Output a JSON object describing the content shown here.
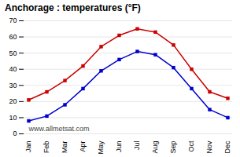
{
  "chart_data": {
    "type": "line",
    "title": "Anchorage : temperatures (°F)",
    "categories": [
      "Jan",
      "Feb",
      "Mar",
      "Apr",
      "May",
      "Jun",
      "Jul",
      "Aug",
      "Sep",
      "Oct",
      "Nov",
      "Dec"
    ],
    "series": [
      {
        "color": "#cc0000",
        "marker": "square",
        "line_style": "solid",
        "values": [
          21,
          26,
          33,
          42,
          54,
          61,
          65,
          63,
          55,
          40,
          26,
          22
        ]
      },
      {
        "color": "#0000cc",
        "marker": "square",
        "line_style": "solid",
        "values": [
          8,
          11,
          18,
          28,
          39,
          46,
          51,
          49,
          41,
          28,
          15,
          10
        ]
      }
    ],
    "ylim": [
      0,
      70
    ],
    "yticks": [
      0,
      10,
      20,
      30,
      40,
      50,
      60,
      70
    ],
    "grid": true,
    "annotations": [
      "www.allmetsat.com"
    ]
  }
}
